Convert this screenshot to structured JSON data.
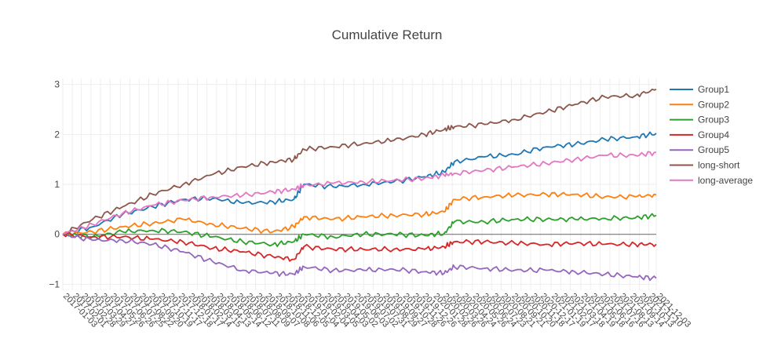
{
  "chart_data": {
    "type": "line",
    "title": "Cumulative Return",
    "xlabel": "",
    "ylabel": "",
    "ylim": [
      -1.12,
      3.12
    ],
    "y_ticks": [
      -1,
      0,
      1,
      2,
      3
    ],
    "y_tick_labels": [
      "−1",
      "0",
      "1",
      "2",
      "3"
    ],
    "grid": true,
    "legend_position": "right",
    "x_start": "2017-01-03",
    "x_end": "2021-12-03",
    "x_tick_labels": [
      "2017-01-03",
      "2017-02-01",
      "2017-02-28",
      "2017-03-29",
      "2017-04-27",
      "2017-05-26",
      "2017-06-26",
      "2017-07-25",
      "2017-08-22",
      "2017-09-20",
      "2017-10-19",
      "2017-11-17",
      "2017-12-18",
      "2018-01-17",
      "2018-02-14",
      "2018-03-15",
      "2018-04-13",
      "2018-05-14",
      "2018-06-12",
      "2018-07-11",
      "2018-08-09",
      "2018-09-07",
      "2018-10-08",
      "2018-11-06",
      "2018-12-05",
      "2019-01-04",
      "2019-02-04",
      "2019-03-05",
      "2019-04-03",
      "2019-05-02",
      "2019-06-03",
      "2019-07-02",
      "2019-07-31",
      "2019-08-29",
      "2019-09-27",
      "2019-10-28",
      "2019-11-26",
      "2019-12-26",
      "2020-01-28",
      "2020-02-26",
      "2020-03-26",
      "2020-04-24",
      "2020-05-26",
      "2020-06-24",
      "2020-07-23",
      "2020-08-21",
      "2020-09-21",
      "2020-10-20",
      "2020-11-18",
      "2020-12-17",
      "2021-01-19",
      "2021-02-17",
      "2021-03-18",
      "2021-04-19",
      "2021-05-18",
      "2021-06-16",
      "2021-07-16",
      "2021-08-13",
      "2021-09-14",
      "2021-10-13",
      "2021-11-10",
      "2021-12-03"
    ],
    "x": [
      "2017-01-03",
      "2017-04-03",
      "2017-07-03",
      "2017-10-02",
      "2018-01-02",
      "2018-04-02",
      "2018-07-02",
      "2018-10-01",
      "2018-12-03",
      "2019-01-02",
      "2019-04-01",
      "2019-07-01",
      "2019-10-01",
      "2020-01-02",
      "2020-03-02",
      "2020-04-01",
      "2020-07-01",
      "2020-10-01",
      "2021-01-04",
      "2021-04-01",
      "2021-07-01",
      "2021-10-01",
      "2021-12-03"
    ],
    "series": [
      {
        "name": "Group1",
        "color": "#1f77b4",
        "values": [
          0.0,
          0.15,
          0.4,
          0.55,
          0.7,
          0.72,
          0.62,
          0.65,
          0.7,
          1.0,
          0.95,
          1.0,
          1.05,
          1.15,
          1.25,
          1.45,
          1.55,
          1.6,
          1.75,
          1.8,
          1.9,
          1.95,
          2.02
        ]
      },
      {
        "name": "Group2",
        "color": "#ff7f0e",
        "values": [
          0.0,
          0.05,
          0.15,
          0.22,
          0.3,
          0.2,
          0.12,
          0.05,
          0.15,
          0.35,
          0.3,
          0.35,
          0.38,
          0.4,
          0.45,
          0.7,
          0.75,
          0.78,
          0.8,
          0.8,
          0.75,
          0.75,
          0.79
        ]
      },
      {
        "name": "Group3",
        "color": "#2ca02c",
        "values": [
          0.0,
          -0.05,
          0.05,
          0.08,
          0.05,
          -0.05,
          -0.15,
          -0.2,
          -0.15,
          0.0,
          -0.05,
          0.0,
          0.0,
          -0.02,
          0.02,
          0.25,
          0.25,
          0.3,
          0.3,
          0.3,
          0.32,
          0.33,
          0.38
        ]
      },
      {
        "name": "Group4",
        "color": "#d62728",
        "values": [
          0.0,
          -0.05,
          -0.05,
          -0.1,
          -0.15,
          -0.28,
          -0.35,
          -0.45,
          -0.5,
          -0.25,
          -0.3,
          -0.3,
          -0.3,
          -0.3,
          -0.25,
          -0.15,
          -0.15,
          -0.18,
          -0.2,
          -0.18,
          -0.2,
          -0.2,
          -0.2
        ]
      },
      {
        "name": "Group5",
        "color": "#9467bd",
        "values": [
          0.0,
          -0.12,
          -0.12,
          -0.2,
          -0.35,
          -0.55,
          -0.72,
          -0.78,
          -0.8,
          -0.65,
          -0.72,
          -0.72,
          -0.7,
          -0.75,
          -0.78,
          -0.65,
          -0.68,
          -0.72,
          -0.72,
          -0.75,
          -0.8,
          -0.85,
          -0.88
        ]
      },
      {
        "name": "long-short",
        "color": "#8c564b",
        "values": [
          0.0,
          0.3,
          0.55,
          0.8,
          1.0,
          1.2,
          1.35,
          1.45,
          1.5,
          1.7,
          1.75,
          1.82,
          1.88,
          2.0,
          2.1,
          2.15,
          2.2,
          2.3,
          2.45,
          2.6,
          2.75,
          2.78,
          2.9
        ]
      },
      {
        "name": "long-average",
        "color": "#e377c2",
        "values": [
          0.0,
          0.2,
          0.42,
          0.58,
          0.68,
          0.75,
          0.78,
          0.85,
          0.9,
          0.98,
          1.02,
          1.05,
          1.08,
          1.12,
          1.18,
          1.22,
          1.28,
          1.35,
          1.42,
          1.5,
          1.58,
          1.58,
          1.64
        ]
      }
    ]
  }
}
